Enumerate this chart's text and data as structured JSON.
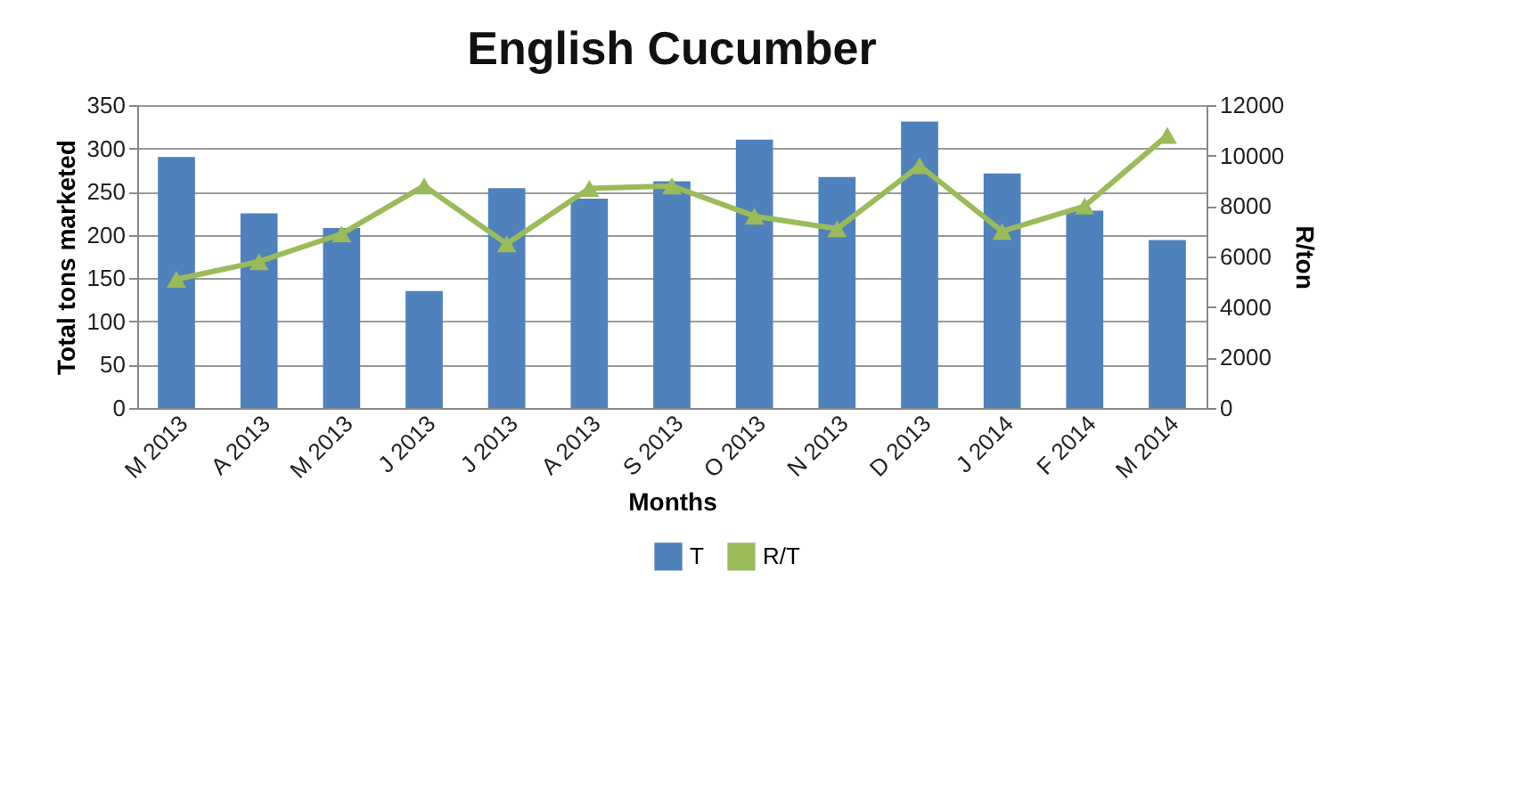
{
  "chart_data": {
    "type": "bar",
    "title": "English Cucumber",
    "xlabel": "Months",
    "ylabel": "Total  tons marketed",
    "y2label": "R/ton",
    "categories": [
      "M 2013",
      "A 2013",
      "M 2013",
      "J 2013",
      "J 2013",
      "A 2013",
      "S 2013",
      "O 2013",
      "N 2013",
      "D 2013",
      "J 2014",
      "F 2014",
      "M 2014"
    ],
    "series": [
      {
        "name": "T",
        "color": "#4f81bd",
        "values": [
          290,
          225,
          208,
          135,
          254,
          242,
          262,
          310,
          267,
          331,
          271,
          228,
          194
        ]
      },
      {
        "name": "R/T",
        "type": "line",
        "axis": "y2",
        "color": "#9bbb59",
        "marker": "triangle",
        "values": [
          5100,
          5800,
          6900,
          8800,
          6500,
          8700,
          8800,
          7600,
          7100,
          9600,
          7000,
          8000,
          10800
        ]
      }
    ],
    "ylim": [
      0,
      350
    ],
    "yticks": [
      0,
      50,
      100,
      150,
      200,
      250,
      300,
      350
    ],
    "y2lim": [
      0,
      12000
    ],
    "y2ticks": [
      0,
      2000,
      4000,
      6000,
      8000,
      10000,
      12000
    ],
    "grid": "y",
    "legend": "bottom"
  }
}
